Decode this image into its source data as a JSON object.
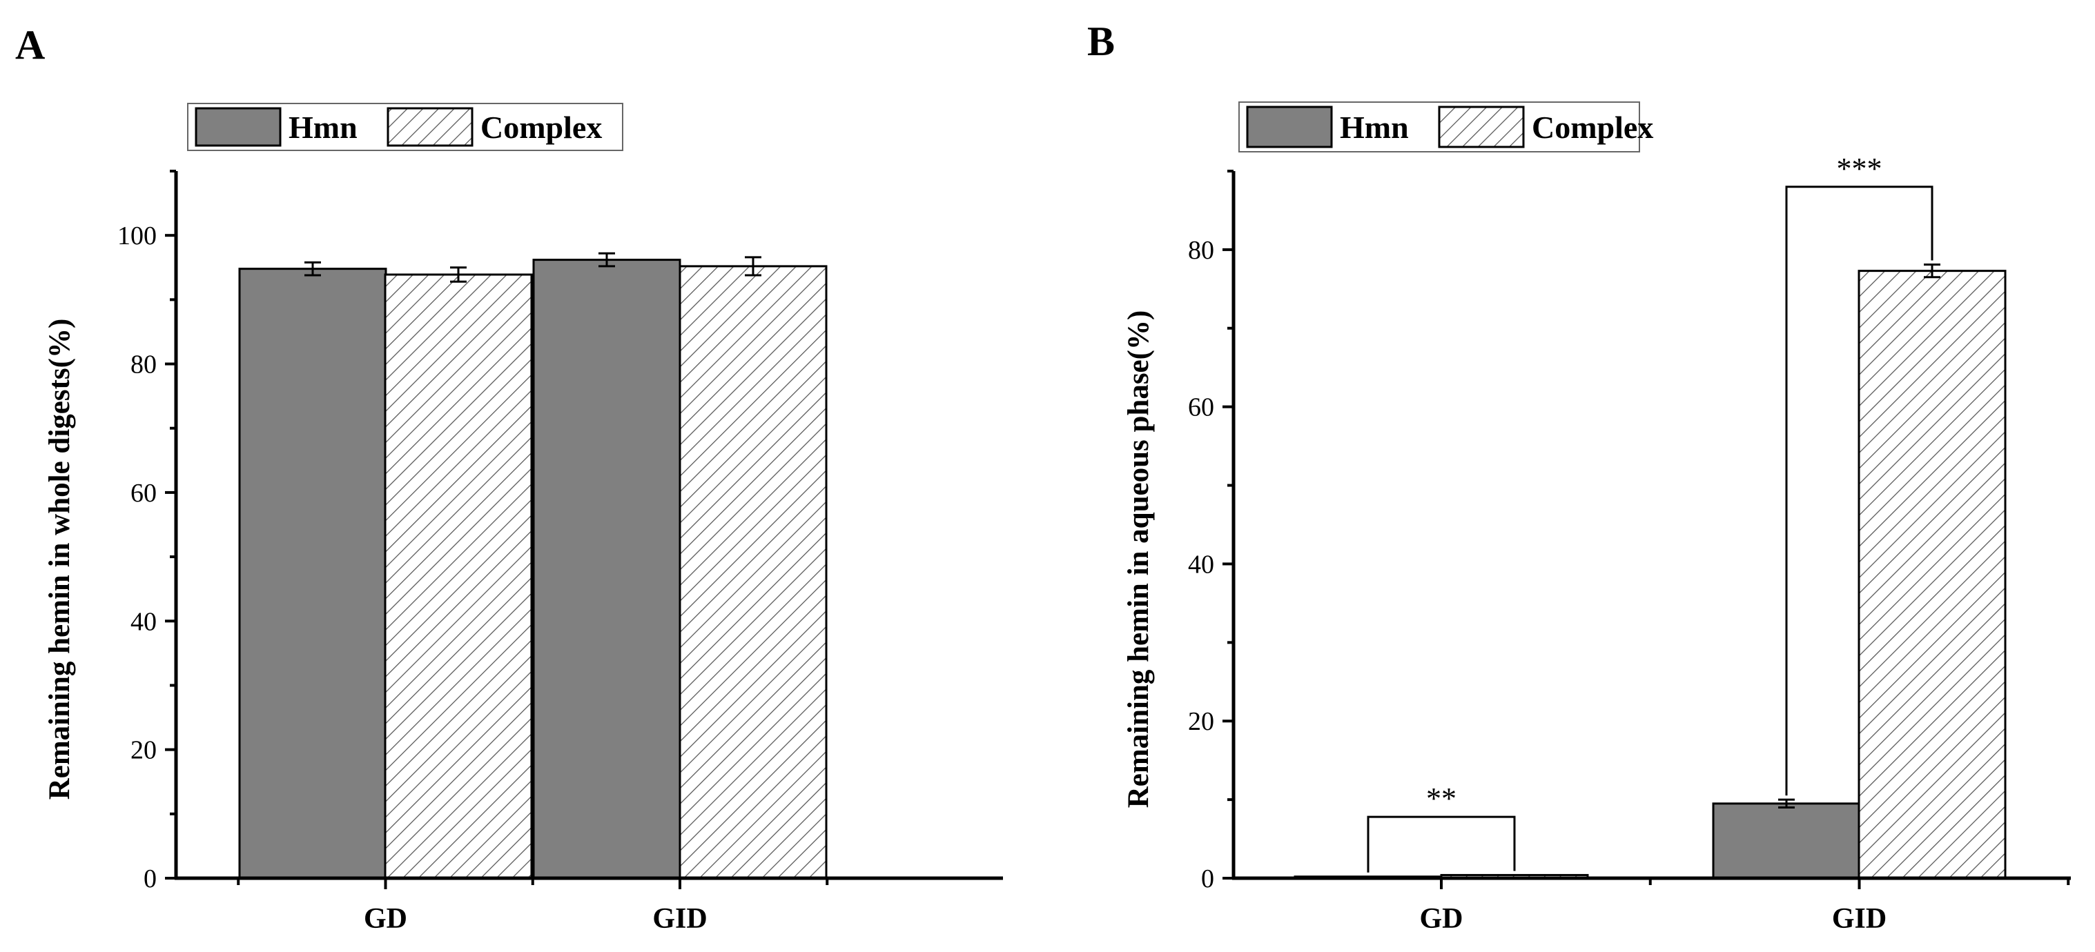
{
  "colors": {
    "hmn_fill": "#808080",
    "complex_fill": "#ffffff",
    "hatch": "#555555",
    "axis": "#000000"
  },
  "chart_data": [
    {
      "panel": "A",
      "type": "bar",
      "categories": [
        "GD",
        "GID"
      ],
      "series": [
        {
          "name": "Hmn",
          "values": [
            94.8,
            96.2
          ],
          "errors": [
            1.0,
            1.0
          ]
        },
        {
          "name": "Complex",
          "values": [
            93.9,
            95.2
          ],
          "errors": [
            1.1,
            1.4
          ]
        }
      ],
      "ylabel": "Remaining hemin in whole digests(%)",
      "xlabel": "",
      "ylim": [
        0,
        110
      ],
      "yticks": [
        0,
        20,
        40,
        60,
        80,
        100
      ],
      "legend": "top-left",
      "annotations": []
    },
    {
      "panel": "B",
      "type": "bar",
      "categories": [
        "GD",
        "GID"
      ],
      "series": [
        {
          "name": "Hmn",
          "values": [
            0.2,
            9.5
          ],
          "errors": [
            0,
            0.5
          ]
        },
        {
          "name": "Complex",
          "values": [
            0.4,
            77.3
          ],
          "errors": [
            0,
            0.8
          ]
        }
      ],
      "ylabel": "Remaining hemin in aqueous phase(%)",
      "xlabel": "",
      "ylim": [
        0,
        90
      ],
      "yticks": [
        0,
        20,
        40,
        60,
        80
      ],
      "legend": "top-left",
      "annotations": [
        {
          "category": "GD",
          "text": "**",
          "y": 7.8
        },
        {
          "category": "GID",
          "text": "***",
          "y": 88
        }
      ]
    }
  ]
}
